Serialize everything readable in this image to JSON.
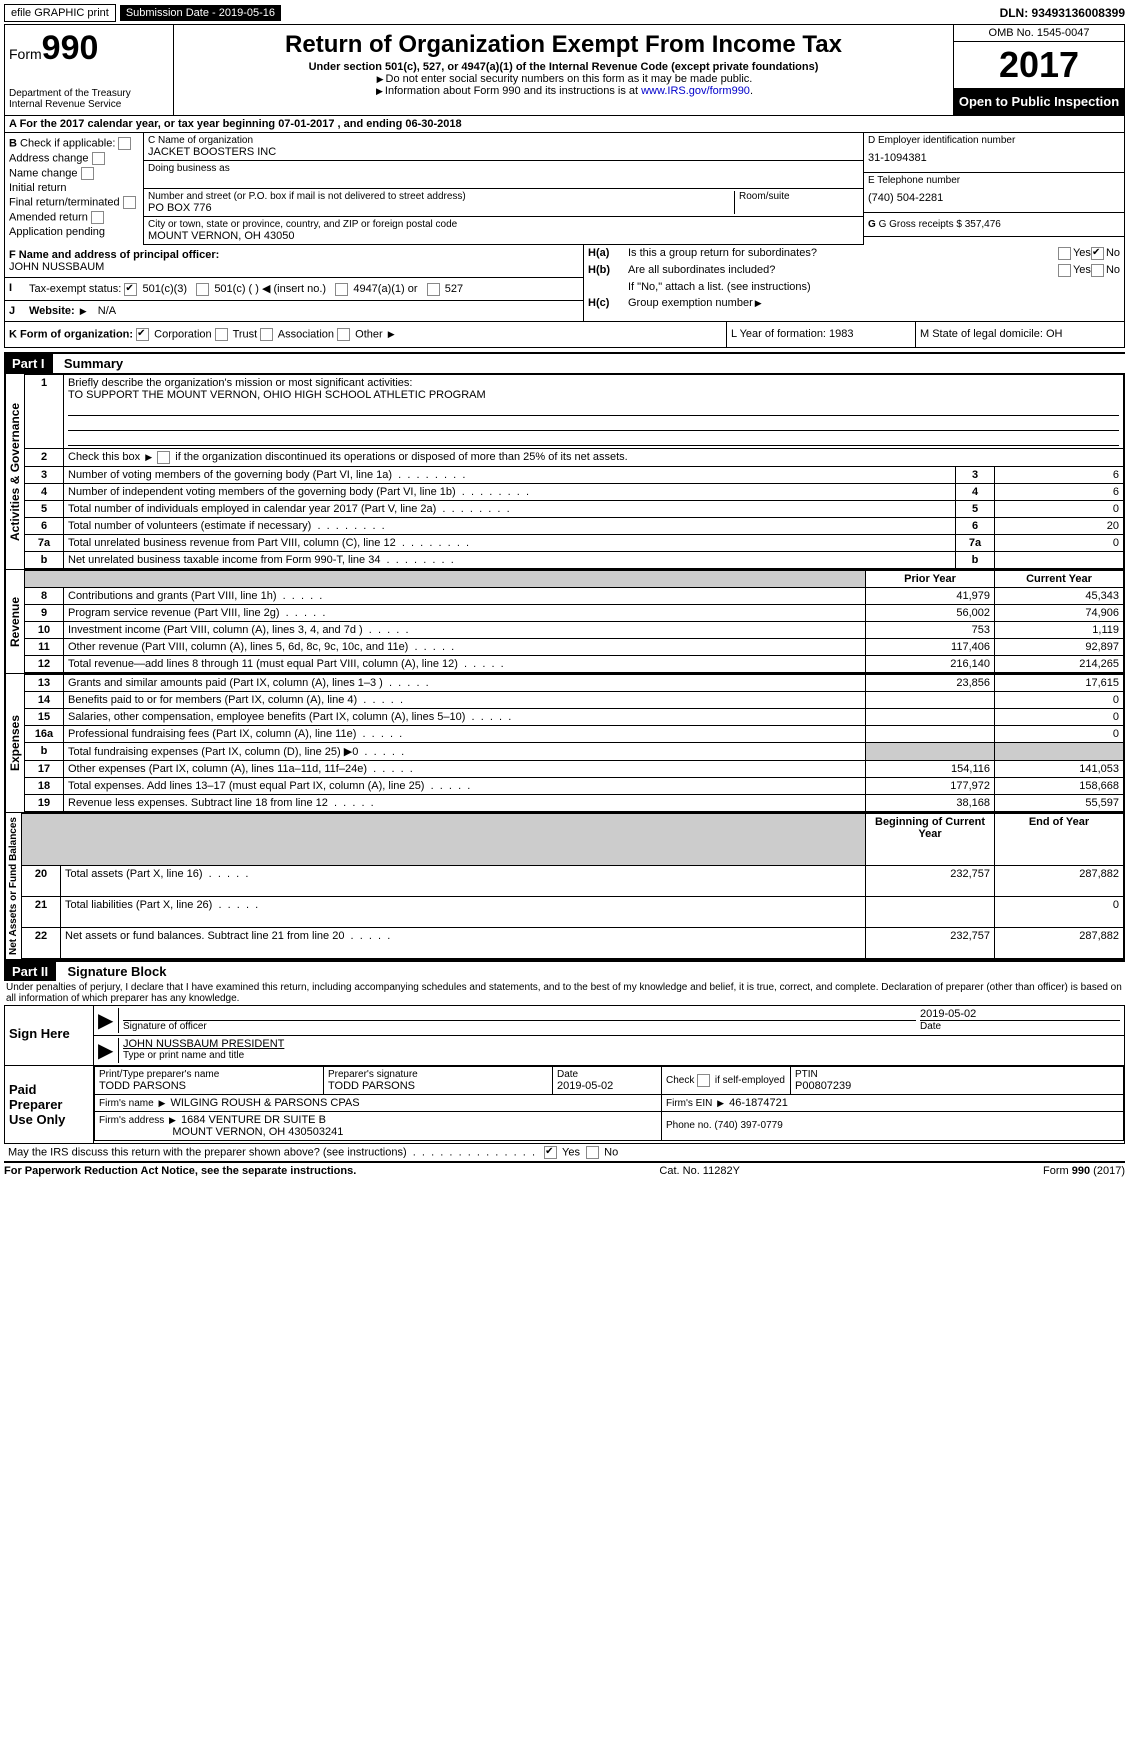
{
  "top": {
    "efile": "efile GRAPHIC print",
    "submission_label": "Submission Date - 2019-05-16",
    "dln": "DLN: 93493136008399"
  },
  "header": {
    "form_prefix": "Form",
    "form_num": "990",
    "dept": "Department of the Treasury",
    "irs": "Internal Revenue Service",
    "title": "Return of Organization Exempt From Income Tax",
    "sub": "Under section 501(c), 527, or 4947(a)(1) of the Internal Revenue Code (except private foundations)",
    "note1": "Do not enter social security numbers on this form as it may be made public.",
    "note2": "Information about Form 990 and its instructions is at ",
    "link": "www.IRS.gov/form990",
    "omb": "OMB No. 1545-0047",
    "year": "2017",
    "open": "Open to Public Inspection"
  },
  "rowA": "A   For the 2017 calendar year, or tax year beginning 07-01-2017       , and ending 06-30-2018",
  "B": {
    "label": "Check if applicable:",
    "items": [
      "Address change",
      "Name change",
      "Initial return",
      "Final return/terminated",
      "Amended return",
      "Application pending"
    ]
  },
  "C": {
    "name_label": "C Name of organization",
    "name": "JACKET BOOSTERS INC",
    "dba_label": "Doing business as",
    "street_label": "Number and street (or P.O. box if mail is not delivered to street address)",
    "room_label": "Room/suite",
    "street": "PO BOX 776",
    "city_label": "City or town, state or province, country, and ZIP or foreign postal code",
    "city": "MOUNT VERNON, OH  43050"
  },
  "D": {
    "label": "D Employer identification number",
    "value": "31-1094381"
  },
  "E": {
    "label": "E Telephone number",
    "value": "(740) 504-2281"
  },
  "G": {
    "label": "G Gross receipts $ 357,476"
  },
  "F": {
    "label": "F Name and address of principal officer:",
    "name": "JOHN NUSSBAUM"
  },
  "H": {
    "a": "Is this a group return for subordinates?",
    "b": "Are all subordinates included?",
    "b_note": "If \"No,\" attach a list. (see instructions)",
    "c": "Group exemption number"
  },
  "I": {
    "label": "Tax-exempt status:",
    "opts": [
      "501(c)(3)",
      "501(c) (  )",
      "(insert no.)",
      "4947(a)(1) or",
      "527"
    ]
  },
  "J": {
    "label": "Website:",
    "value": "N/A"
  },
  "K": {
    "label": "K Form of organization:",
    "opts": [
      "Corporation",
      "Trust",
      "Association",
      "Other"
    ]
  },
  "L": {
    "label": "L Year of formation: 1983"
  },
  "M": {
    "label": "M State of legal domicile: OH"
  },
  "part1": {
    "header": "Part I",
    "title": "Summary",
    "line1_label": "Briefly describe the organization's mission or most significant activities:",
    "line1_value": "TO SUPPORT THE MOUNT VERNON, OHIO HIGH SCHOOL ATHLETIC PROGRAM",
    "line2": "Check this box    if the organization discontinued its operations or disposed of more than 25% of its net assets.",
    "rows_gov": [
      {
        "n": "3",
        "t": "Number of voting members of the governing body (Part VI, line 1a)",
        "v": "6"
      },
      {
        "n": "4",
        "t": "Number of independent voting members of the governing body (Part VI, line 1b)",
        "v": "6"
      },
      {
        "n": "5",
        "t": "Total number of individuals employed in calendar year 2017 (Part V, line 2a)",
        "v": "0"
      },
      {
        "n": "6",
        "t": "Total number of volunteers (estimate if necessary)",
        "v": "20"
      },
      {
        "n": "7a",
        "t": "Total unrelated business revenue from Part VIII, column (C), line 12",
        "v": "0"
      },
      {
        "n": "b",
        "t": "Net unrelated business taxable income from Form 990-T, line 34",
        "v": ""
      }
    ],
    "col_prior": "Prior Year",
    "col_current": "Current Year",
    "rows_rev": [
      {
        "n": "8",
        "t": "Contributions and grants (Part VIII, line 1h)",
        "p": "41,979",
        "c": "45,343"
      },
      {
        "n": "9",
        "t": "Program service revenue (Part VIII, line 2g)",
        "p": "56,002",
        "c": "74,906"
      },
      {
        "n": "10",
        "t": "Investment income (Part VIII, column (A), lines 3, 4, and 7d )",
        "p": "753",
        "c": "1,119"
      },
      {
        "n": "11",
        "t": "Other revenue (Part VIII, column (A), lines 5, 6d, 8c, 9c, 10c, and 11e)",
        "p": "117,406",
        "c": "92,897"
      },
      {
        "n": "12",
        "t": "Total revenue—add lines 8 through 11 (must equal Part VIII, column (A), line 12)",
        "p": "216,140",
        "c": "214,265"
      }
    ],
    "rows_exp": [
      {
        "n": "13",
        "t": "Grants and similar amounts paid (Part IX, column (A), lines 1–3 )",
        "p": "23,856",
        "c": "17,615"
      },
      {
        "n": "14",
        "t": "Benefits paid to or for members (Part IX, column (A), line 4)",
        "p": "",
        "c": "0"
      },
      {
        "n": "15",
        "t": "Salaries, other compensation, employee benefits (Part IX, column (A), lines 5–10)",
        "p": "",
        "c": "0"
      },
      {
        "n": "16a",
        "t": "Professional fundraising fees (Part IX, column (A), line 11e)",
        "p": "",
        "c": "0"
      },
      {
        "n": "b",
        "t": "Total fundraising expenses (Part IX, column (D), line 25)  ▶0",
        "p": "shade",
        "c": "shade"
      },
      {
        "n": "17",
        "t": "Other expenses (Part IX, column (A), lines 11a–11d, 11f–24e)",
        "p": "154,116",
        "c": "141,053"
      },
      {
        "n": "18",
        "t": "Total expenses. Add lines 13–17 (must equal Part IX, column (A), line 25)",
        "p": "177,972",
        "c": "158,668"
      },
      {
        "n": "19",
        "t": "Revenue less expenses. Subtract line 18 from line 12",
        "p": "38,168",
        "c": "55,597"
      }
    ],
    "col_begin": "Beginning of Current Year",
    "col_end": "End of Year",
    "rows_net": [
      {
        "n": "20",
        "t": "Total assets (Part X, line 16)",
        "p": "232,757",
        "c": "287,882"
      },
      {
        "n": "21",
        "t": "Total liabilities (Part X, line 26)",
        "p": "",
        "c": "0"
      },
      {
        "n": "22",
        "t": "Net assets or fund balances. Subtract line 21 from line 20",
        "p": "232,757",
        "c": "287,882"
      }
    ],
    "vert_gov": "Activities & Governance",
    "vert_rev": "Revenue",
    "vert_exp": "Expenses",
    "vert_net": "Net Assets or Fund Balances"
  },
  "part2": {
    "header": "Part II",
    "title": "Signature Block",
    "declaration": "Under penalties of perjury, I declare that I have examined this return, including accompanying schedules and statements, and to the best of my knowledge and belief, it is true, correct, and complete. Declaration of preparer (other than officer) is based on all information of which preparer has any knowledge.",
    "sign_here": "Sign Here",
    "sig_officer": "Signature of officer",
    "sig_date": "2019-05-02",
    "date_label": "Date",
    "officer_name": "JOHN NUSSBAUM PRESIDENT",
    "type_name": "Type or print name and title",
    "paid": "Paid Preparer Use Only",
    "prep_name_label": "Print/Type preparer's name",
    "prep_name": "TODD PARSONS",
    "prep_sig_label": "Preparer's signature",
    "prep_sig": "TODD PARSONS",
    "prep_date_label": "Date",
    "prep_date": "2019-05-02",
    "check_self": "Check        if self-employed",
    "ptin_label": "PTIN",
    "ptin": "P00807239",
    "firm_name_label": "Firm's name    ",
    "firm_name": "WILGING ROUSH & PARSONS CPAS",
    "firm_ein_label": "Firm's EIN ",
    "firm_ein": "46-1874721",
    "firm_addr_label": "Firm's address ",
    "firm_addr1": "1684 VENTURE DR SUITE B",
    "firm_addr2": "MOUNT VERNON, OH  430503241",
    "phone_label": "Phone no. (740) 397-0779",
    "discuss": "May the IRS discuss this return with the preparer shown above? (see instructions)"
  },
  "footer": {
    "left": "For Paperwork Reduction Act Notice, see the separate instructions.",
    "mid": "Cat. No. 11282Y",
    "right": "Form 990 (2017)"
  }
}
